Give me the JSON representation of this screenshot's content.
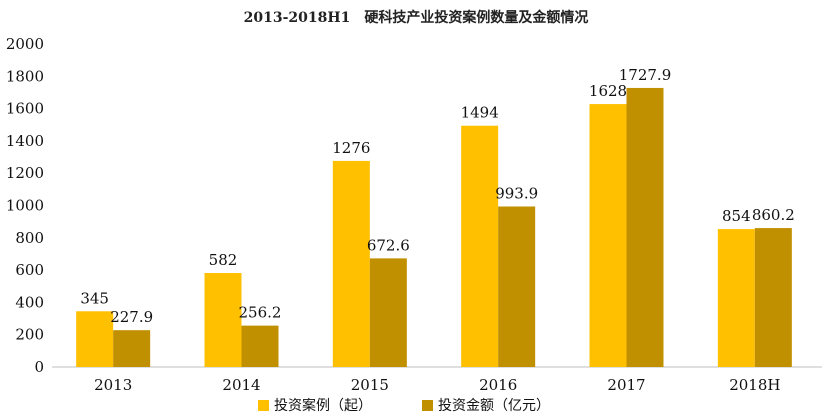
{
  "chart_data": {
    "type": "bar",
    "title": "2013-2018H1　硬科技产业投资案例数量及金额情况",
    "categories": [
      "2013",
      "2014",
      "2015",
      "2016",
      "2017",
      "2018H"
    ],
    "series": [
      {
        "name": "投资案例（起）",
        "values": [
          345,
          582,
          1276,
          1494,
          1628,
          854
        ],
        "labels": [
          "345",
          "582",
          "1276",
          "1494",
          "1628",
          "854"
        ]
      },
      {
        "name": "投资金额（亿元）",
        "values": [
          227.9,
          256.2,
          672.6,
          993.9,
          1727.9,
          860.2
        ],
        "labels": [
          "227.9",
          "256.2",
          "672.6",
          "993.9",
          "1727.9",
          "860.2"
        ]
      }
    ],
    "ylim": [
      0,
      2000
    ],
    "yticks": [
      "0",
      "200",
      "400",
      "600",
      "800",
      "1000",
      "1200",
      "1400",
      "1600",
      "1800",
      "2000"
    ],
    "grid": false,
    "legend_position": "bottom",
    "colors": [
      "#FFC000",
      "#C09000"
    ],
    "xlabel": "",
    "ylabel": ""
  }
}
